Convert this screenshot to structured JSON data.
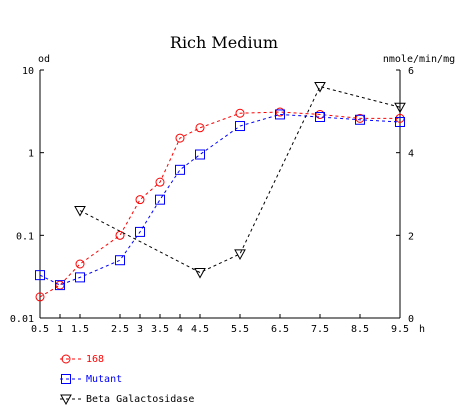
{
  "chart_data": {
    "type": "line",
    "title": "Rich Medium",
    "y_left_label": "od",
    "y_right_label": "nmole/min/mg",
    "x_unit": "h",
    "x_ticks": [
      0.5,
      1,
      1.5,
      2.5,
      3,
      3.5,
      4,
      4.5,
      5.5,
      6.5,
      7.5,
      8.5,
      9.5
    ],
    "x_tick_labels": [
      "0.5",
      "1",
      "1.5",
      "2.5",
      "3",
      "3.5",
      "4",
      "4.5",
      "5.5",
      "6.5",
      "7.5",
      "8.5",
      "9.5"
    ],
    "y_left_scale": "log",
    "y_left_range": [
      0.01,
      10
    ],
    "y_left_ticks": [
      0.01,
      0.1,
      1,
      10
    ],
    "y_left_tick_labels": [
      "0.01",
      "0.1",
      "1",
      "10"
    ],
    "y_right_range": [
      0,
      6
    ],
    "y_right_ticks": [
      0,
      2,
      4,
      6
    ],
    "y_right_tick_labels": [
      "0",
      "2",
      "4",
      "6"
    ],
    "grid": false,
    "legend_position": "bottom-left",
    "series": [
      {
        "name": "168",
        "axis": "left",
        "color": "#ff0000",
        "marker": "circle",
        "x": [
          0.5,
          1,
          1.5,
          2.5,
          3,
          3.5,
          4,
          4.5,
          5.5,
          6.5,
          7.5,
          8.5,
          9.5
        ],
        "y": [
          0.018,
          0.025,
          0.045,
          0.1,
          0.27,
          0.44,
          1.5,
          2.0,
          3.0,
          3.1,
          2.9,
          2.6,
          2.6
        ]
      },
      {
        "name": "Mutant",
        "axis": "left",
        "color": "#0000ff",
        "marker": "square",
        "x": [
          0.5,
          1,
          1.5,
          2.5,
          3,
          3.5,
          4,
          4.5,
          5.5,
          6.5,
          7.5,
          8.5,
          9.5
        ],
        "y": [
          0.033,
          0.025,
          0.031,
          0.05,
          0.11,
          0.27,
          0.62,
          0.95,
          2.1,
          2.9,
          2.7,
          2.5,
          2.35
        ]
      },
      {
        "name": "Beta Galactosidase",
        "axis": "right",
        "color": "#000000",
        "marker": "triangle-down",
        "x": [
          1.5,
          4.5,
          5.5,
          7.5,
          9.5
        ],
        "y": [
          2.6,
          1.1,
          1.55,
          5.6,
          5.1
        ]
      }
    ]
  }
}
